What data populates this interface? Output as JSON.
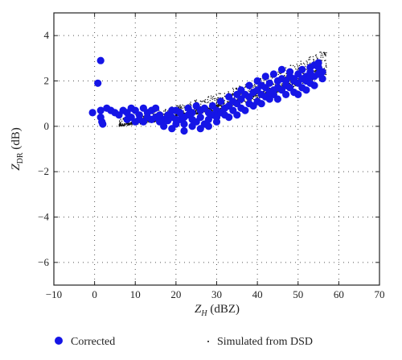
{
  "chart_data": {
    "type": "scatter",
    "xlabel": {
      "main": "Z",
      "sub": "H",
      "unit": " (dBZ)"
    },
    "ylabel": {
      "main": "Z",
      "sub": "DR",
      "unit": " (dB)"
    },
    "xlim": [
      -10,
      70
    ],
    "ylim": [
      -7,
      5
    ],
    "xticks": [
      -10,
      0,
      10,
      20,
      30,
      40,
      50,
      60,
      70
    ],
    "yticks": [
      -6,
      -4,
      -2,
      0,
      2,
      4
    ],
    "grid": true,
    "legend_position": "bottom",
    "series": [
      {
        "name": "Corrected",
        "marker": "large-filled-circle",
        "color": "#1515e6",
        "points": [
          [
            1.5,
            2.9
          ],
          [
            0.8,
            1.9
          ],
          [
            -0.5,
            0.6
          ],
          [
            1.5,
            0.7
          ],
          [
            1.5,
            0.4
          ],
          [
            1.8,
            0.2
          ],
          [
            2.0,
            0.1
          ],
          [
            3,
            0.8
          ],
          [
            4,
            0.7
          ],
          [
            5,
            0.6
          ],
          [
            6,
            0.5
          ],
          [
            7,
            0.7
          ],
          [
            8,
            0.6
          ],
          [
            9,
            0.8
          ],
          [
            10,
            0.7
          ],
          [
            11,
            0.5
          ],
          [
            12,
            0.8
          ],
          [
            13,
            0.6
          ],
          [
            14,
            0.7
          ],
          [
            15,
            0.4
          ],
          [
            16,
            0.5
          ],
          [
            17,
            0.3
          ],
          [
            18,
            0.5
          ],
          [
            19,
            0.4
          ],
          [
            20,
            0.7
          ],
          [
            21,
            0.3
          ],
          [
            22,
            0.1
          ],
          [
            23,
            0.5
          ],
          [
            24,
            0.3
          ],
          [
            25,
            0.2
          ],
          [
            26,
            0.4
          ],
          [
            27,
            0.1
          ],
          [
            28,
            0.3
          ],
          [
            29,
            0.5
          ],
          [
            30,
            0.7
          ],
          [
            31,
            0.6
          ],
          [
            32,
            0.8
          ],
          [
            33,
            0.9
          ],
          [
            34,
            1.1
          ],
          [
            35,
            1.0
          ],
          [
            36,
            1.2
          ],
          [
            37,
            1.4
          ],
          [
            38,
            1.3
          ],
          [
            39,
            1.5
          ],
          [
            40,
            1.6
          ],
          [
            41,
            1.8
          ],
          [
            42,
            1.7
          ],
          [
            43,
            1.9
          ],
          [
            44,
            1.6
          ],
          [
            45,
            2.0
          ],
          [
            46,
            2.1
          ],
          [
            47,
            1.8
          ],
          [
            48,
            2.2
          ],
          [
            49,
            2.0
          ],
          [
            50,
            2.3
          ],
          [
            51,
            2.5
          ],
          [
            52,
            2.2
          ],
          [
            53,
            2.6
          ],
          [
            54,
            2.7
          ],
          [
            55,
            2.6
          ],
          [
            56,
            2.4
          ],
          [
            8,
            0.3
          ],
          [
            12,
            0.2
          ],
          [
            14,
            0.3
          ],
          [
            16,
            0.2
          ],
          [
            18,
            0.25
          ],
          [
            20,
            0.3
          ],
          [
            22,
            0.4
          ],
          [
            24,
            0.6
          ],
          [
            26,
            0.7
          ],
          [
            28,
            0.6
          ],
          [
            30,
            0.4
          ],
          [
            32,
            0.5
          ],
          [
            34,
            0.7
          ],
          [
            36,
            0.8
          ],
          [
            38,
            1.0
          ],
          [
            40,
            1.1
          ],
          [
            42,
            1.3
          ],
          [
            44,
            1.4
          ],
          [
            46,
            1.6
          ],
          [
            48,
            1.7
          ],
          [
            50,
            1.9
          ],
          [
            52,
            2.0
          ],
          [
            54,
            2.2
          ],
          [
            56,
            2.1
          ],
          [
            50,
            1.4
          ],
          [
            52,
            1.6
          ],
          [
            54,
            1.8
          ],
          [
            36,
            1.6
          ],
          [
            38,
            1.8
          ],
          [
            40,
            2.0
          ],
          [
            42,
            2.2
          ],
          [
            44,
            2.3
          ],
          [
            46,
            2.5
          ],
          [
            48,
            2.4
          ],
          [
            22,
            -0.2
          ],
          [
            24,
            0.0
          ],
          [
            26,
            -0.1
          ],
          [
            28,
            0.0
          ],
          [
            20,
            0.1
          ],
          [
            17,
            0.0
          ],
          [
            19,
            -0.1
          ],
          [
            30,
            0.2
          ],
          [
            33,
            0.4
          ],
          [
            35,
            0.5
          ],
          [
            37,
            0.7
          ],
          [
            39,
            0.9
          ],
          [
            41,
            1.0
          ],
          [
            43,
            1.2
          ],
          [
            45,
            1.2
          ],
          [
            47,
            1.4
          ],
          [
            49,
            1.5
          ],
          [
            51,
            1.7
          ],
          [
            53,
            1.9
          ],
          [
            55,
            2.3
          ],
          [
            55,
            2.8
          ],
          [
            53,
            2.4
          ],
          [
            31,
            1.1
          ],
          [
            33,
            1.3
          ],
          [
            35,
            1.4
          ],
          [
            29,
            0.9
          ],
          [
            27,
            0.8
          ],
          [
            25,
            0.9
          ],
          [
            23,
            0.8
          ],
          [
            21,
            0.6
          ],
          [
            19,
            0.7
          ],
          [
            15,
            0.8
          ],
          [
            13,
            0.4
          ],
          [
            11,
            0.3
          ],
          [
            9,
            0.4
          ],
          [
            10,
            0.2
          ],
          [
            41,
            1.4
          ],
          [
            43,
            1.5
          ],
          [
            45,
            1.7
          ],
          [
            47,
            2.0
          ],
          [
            49,
            2.1
          ],
          [
            51,
            2.1
          ],
          [
            53,
            2.2
          ]
        ]
      },
      {
        "name": "Simulated from DSD",
        "marker": "small-dot",
        "color": "#111111",
        "band": {
          "x_range": [
            6,
            57
          ],
          "count": 1600,
          "curve": "0.04 + 0.02*(x-6) + 0.00055*(x-6)^2",
          "spread_below": 0.15,
          "spread_above": 0.75
        }
      }
    ]
  }
}
